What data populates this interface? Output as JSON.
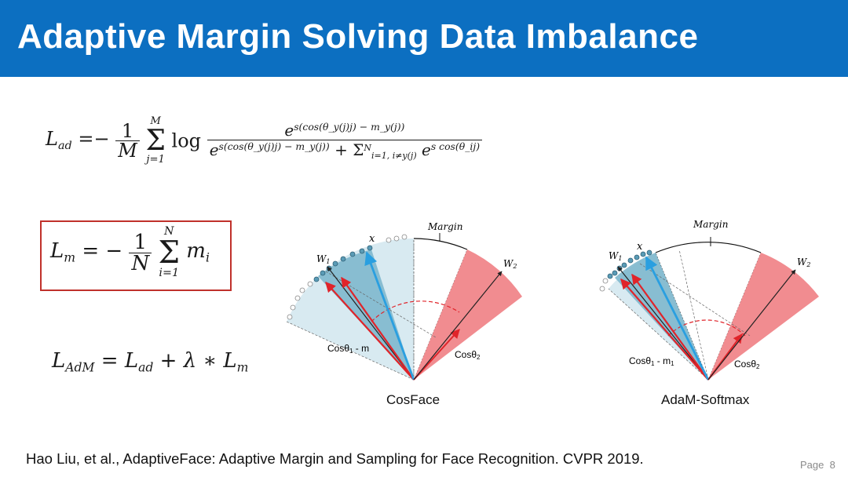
{
  "title": "Adaptive Margin Solving Data Imbalance",
  "formulas": {
    "lad": {
      "lhs_L": "L",
      "lhs_sub": "ad",
      "eq": "=−",
      "frac_num": "1",
      "frac_den": "M",
      "sum_upper": "M",
      "sum_lower": "j=1",
      "log": "log",
      "num_e": "e",
      "num_exp": "s(cos(θ_y(j)j) − m_y(j))",
      "den_e": "e",
      "den_exp": "s(cos(θ_y(j)j) − m_y(j))",
      "den_plus": "+ Σ",
      "den_sum_sup": "N",
      "den_sum_sub": "i=1, i≠y(j)",
      "den_e2": "e",
      "den_exp2": "s cos(θ_ij)"
    },
    "lm": {
      "lhs_L": "L",
      "lhs_sub": "m",
      "eq": "= −",
      "frac_num": "1",
      "frac_den": "N",
      "sum_upper": "N",
      "sum_lower": "i=1",
      "term": "m",
      "term_sub": "i"
    },
    "ladm": {
      "L1": "L",
      "L1_sub": "AdM",
      "eq": "=",
      "L2": "L",
      "L2_sub": "ad",
      "plus": "+",
      "lambda": "λ",
      "star": "∗",
      "L3": "L",
      "L3_sub": "m"
    }
  },
  "diagrams": {
    "cosface": {
      "caption": "CosFace",
      "label_x": "x",
      "label_w1": "W",
      "label_w1_sub": "1",
      "label_w2": "W",
      "label_w2_sub": "2",
      "label_margin": "Margin",
      "label_cos1": "Cosθ",
      "label_cos1_sub": "1",
      "label_cos1_tail": " - m",
      "label_cos2": "Cosθ",
      "label_cos2_sub": "2"
    },
    "adam": {
      "caption": "AdaM-Softmax",
      "label_x": "x",
      "label_w1": "W",
      "label_w1_sub": "1",
      "label_w2": "W",
      "label_w2_sub": "2",
      "label_margin": "Margin",
      "label_cos1": "Cosθ",
      "label_cos1_sub": "1",
      "label_cos1_tail": " - m",
      "label_cos1_tail_sub": "1",
      "label_cos2": "Cosθ",
      "label_cos2_sub": "2"
    }
  },
  "colors": {
    "title_bar": "#0c6fc1",
    "light_blue": "#cfe6ee",
    "mid_blue": "#7fb8cd",
    "red_fill": "#ef7f84",
    "red_arrow": "#e0242a",
    "blue_arrow": "#2a9fe0",
    "box_border": "#c0312b"
  },
  "citation": "Hao Liu, et al., AdaptiveFace: Adaptive Margin and Sampling for Face Recognition. CVPR 2019.",
  "page": {
    "label": "Page",
    "number": "8"
  }
}
